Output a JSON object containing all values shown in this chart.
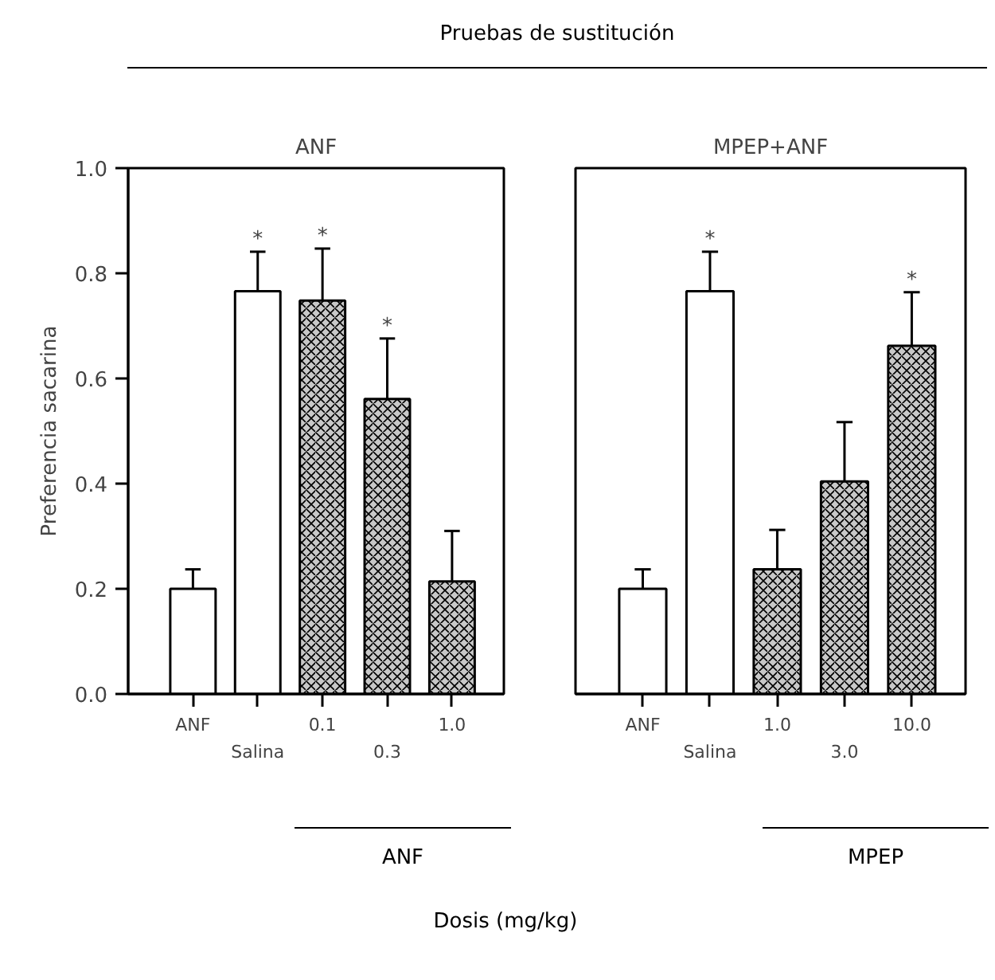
{
  "chart_data": [
    {
      "type": "bar",
      "title": "ANF",
      "xlabel": "Dosis (mg/kg)",
      "ylabel": "Preferencia sacarina",
      "categories": [
        "ANF",
        "Salina",
        "0.1",
        "0.3",
        "1.0"
      ],
      "values": [
        0.2,
        0.766,
        0.748,
        0.561,
        0.214
      ],
      "errors": [
        [
          0.2,
          0.237
        ],
        [
          0.766,
          0.841
        ],
        [
          0.748,
          0.847
        ],
        [
          0.561,
          0.676
        ],
        [
          0.214,
          0.31
        ]
      ],
      "colors": [
        "#ffffff",
        "#ffffff",
        "#c8c8c8",
        "#c8c8c8",
        "#c8c8c8"
      ],
      "value_labels": [
        null,
        "*",
        "*",
        "*",
        null
      ],
      "ylim": [
        0,
        1.0
      ],
      "yticks": [
        {
          "value": 0.0,
          "label": "0.0"
        },
        0.2,
        0.4,
        0.6,
        0.8,
        {
          "value": 1.0,
          "label": "1.0"
        }
      ],
      "grid": false,
      "annotations": [
        "Pruebas de sustitución",
        "ANF"
      ]
    },
    {
      "type": "bar",
      "title": "MPEP+ANF",
      "categories": [
        "ANF",
        "Salina",
        "1.0",
        "3.0",
        "10.0"
      ],
      "values": [
        0.2,
        0.766,
        0.237,
        0.404,
        0.662
      ],
      "errors": [
        [
          0.2,
          0.237
        ],
        [
          0.766,
          0.841
        ],
        [
          0.237,
          0.312
        ],
        [
          0.404,
          0.517
        ],
        [
          0.662,
          0.764
        ]
      ],
      "colors": [
        "#ffffff",
        "#ffffff",
        "#c8c8c8",
        "#c8c8c8",
        "#c8c8c8"
      ],
      "value_labels": [
        null,
        "*",
        null,
        null,
        "*"
      ],
      "ylim": [
        0,
        1.0
      ],
      "tick_labels": "x",
      "grid": false,
      "annotations": [
        "MPEP"
      ]
    }
  ]
}
